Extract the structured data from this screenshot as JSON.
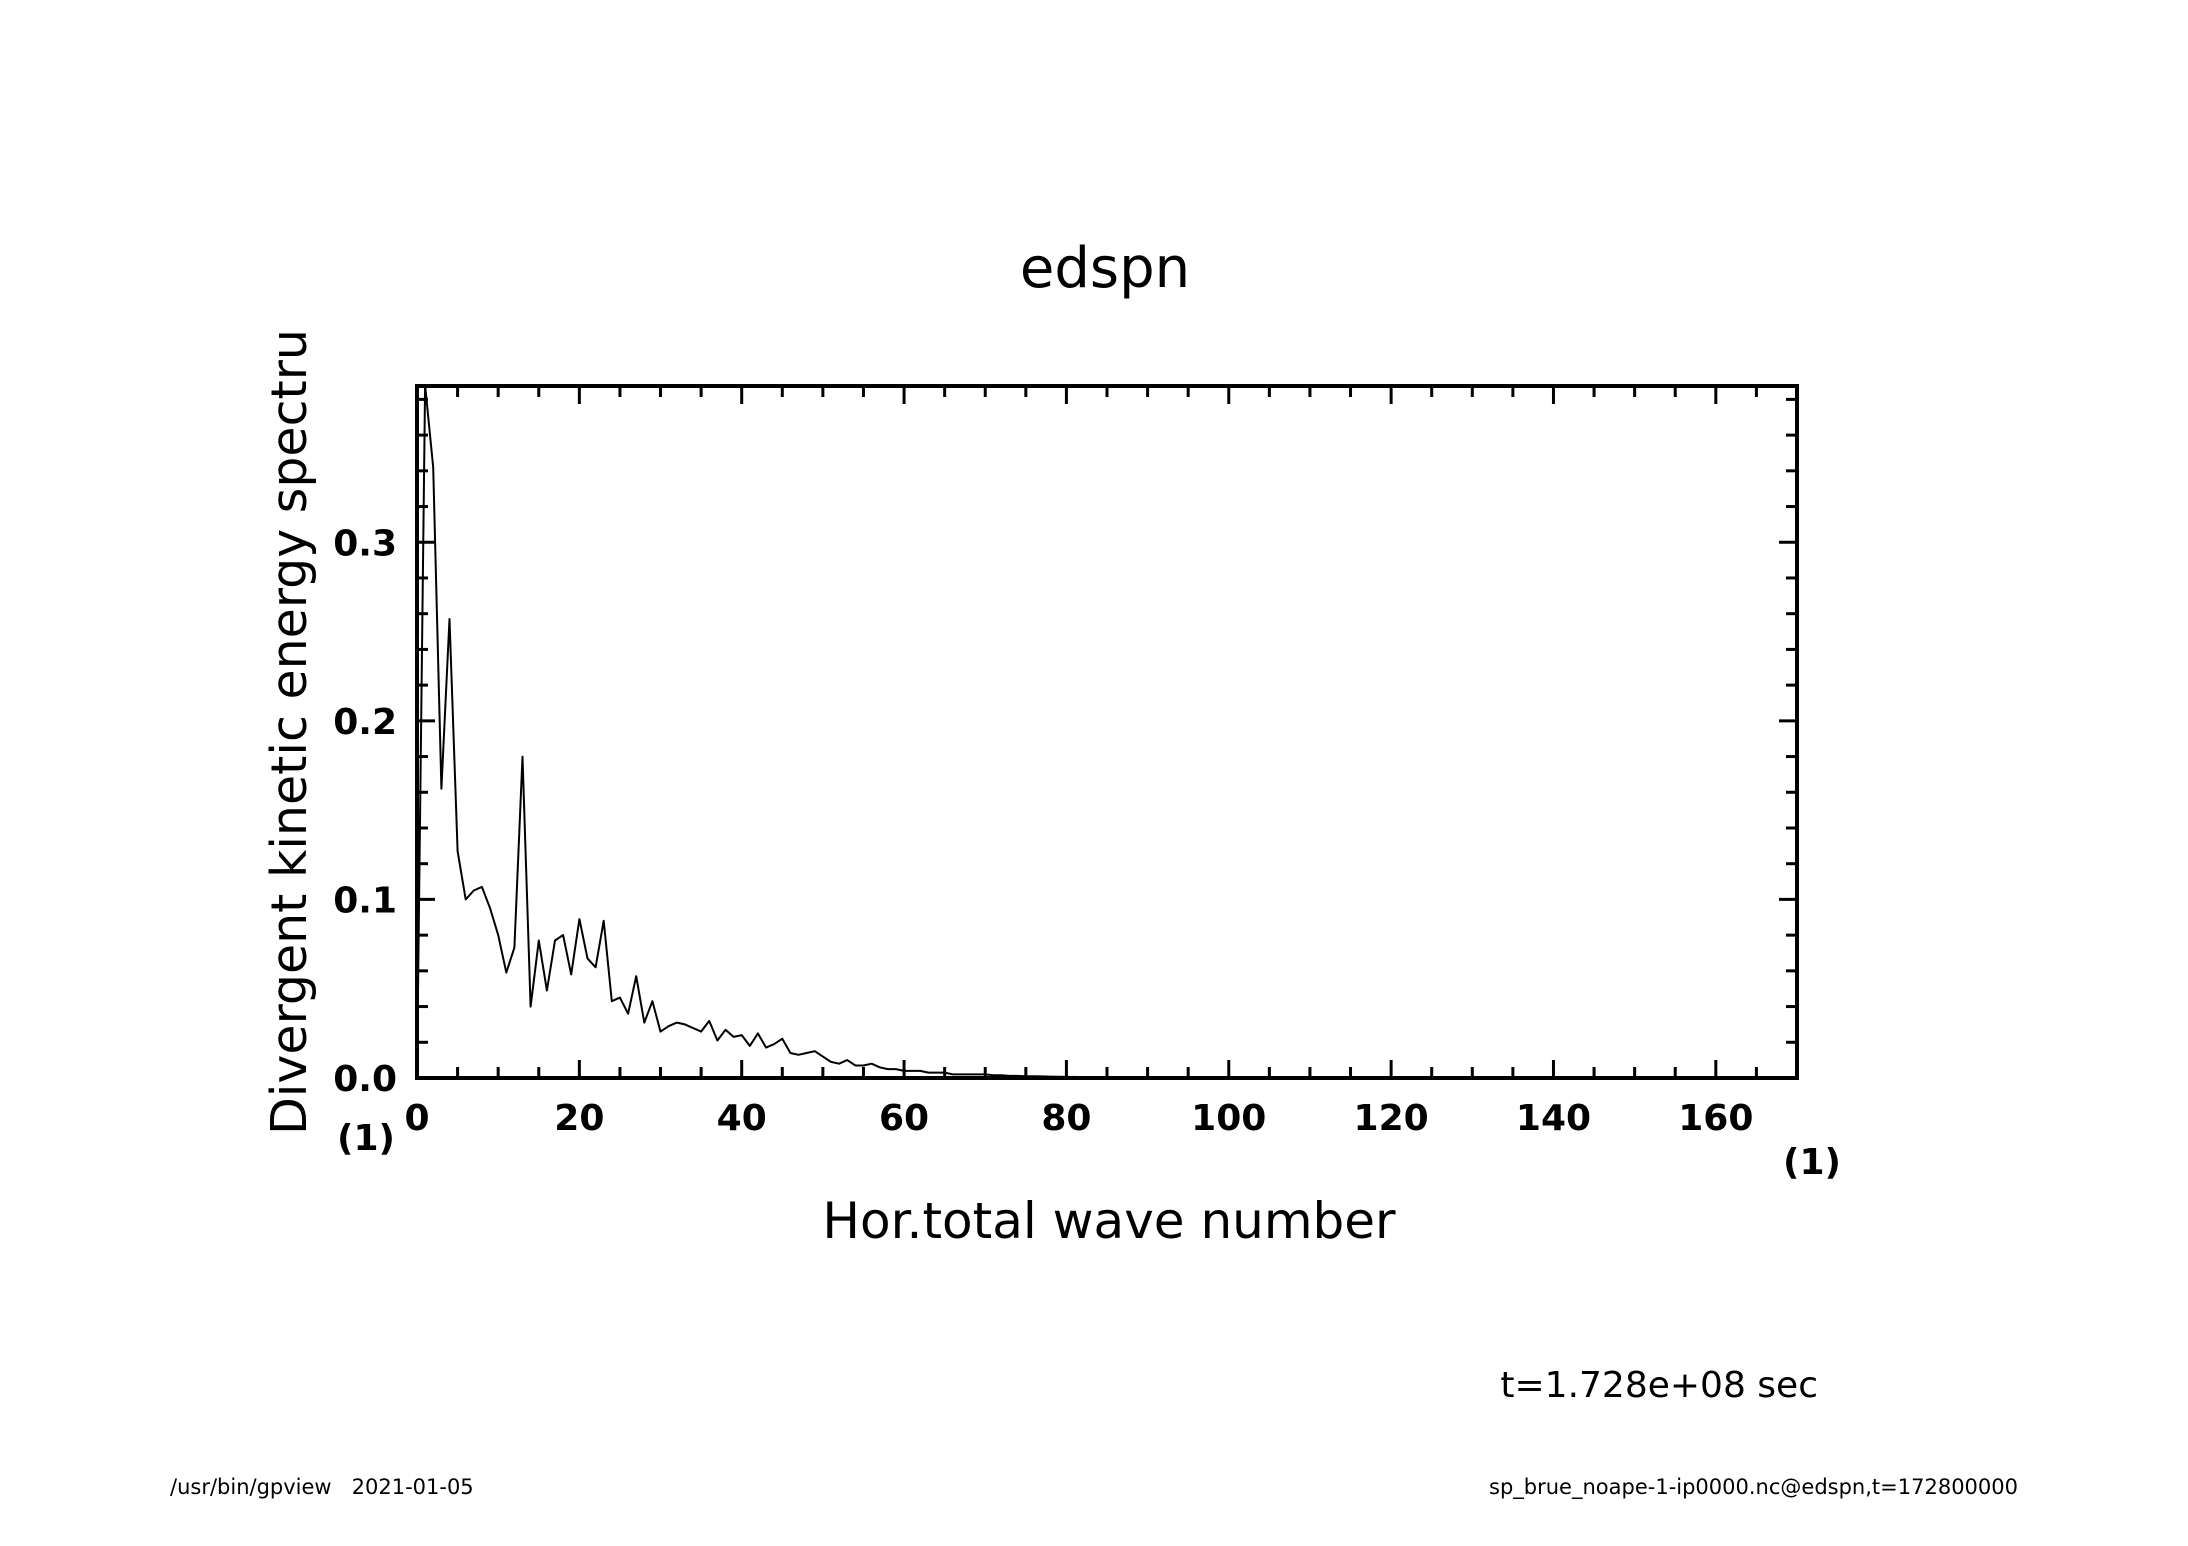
{
  "chart_data": {
    "type": "line",
    "title": "edspn",
    "xlabel": "Hor.total wave number",
    "ylabel": "Divergent kinetic energy spectru",
    "x_unit": "(1)",
    "y_unit": "(1)",
    "xlim": [
      0,
      170
    ],
    "ylim": [
      0,
      0.3875
    ],
    "x_ticks": [
      0,
      20,
      40,
      60,
      80,
      100,
      120,
      140,
      160
    ],
    "x_tick_labels": [
      "0",
      "20",
      "40",
      "60",
      "80",
      "100",
      "120",
      "140",
      "160"
    ],
    "y_ticks": [
      0.0,
      0.1,
      0.2,
      0.3
    ],
    "y_tick_labels": [
      "0.0",
      "0.1",
      "0.2",
      "0.3"
    ],
    "grid": false,
    "series": [
      {
        "x": [
          0,
          1,
          2,
          3,
          4,
          5,
          6,
          7,
          8,
          9,
          10,
          11,
          12,
          13,
          14,
          15,
          16,
          17,
          18,
          19,
          20,
          21,
          22,
          23,
          24,
          25,
          26,
          27,
          28,
          29,
          30,
          31,
          32,
          33,
          34,
          35,
          36,
          37,
          38,
          39,
          40,
          41,
          42,
          43,
          44,
          45,
          46,
          47,
          48,
          49,
          50,
          51,
          52,
          53,
          54,
          55,
          56,
          57,
          58,
          59,
          60,
          61,
          62,
          63,
          64,
          65,
          66,
          67,
          68,
          69,
          70,
          71,
          72,
          73,
          74,
          75,
          76,
          77,
          78,
          79,
          80,
          85,
          90,
          95,
          100,
          110,
          120,
          130,
          140,
          150,
          160,
          170
        ],
        "y": [
          0.0,
          0.388,
          0.342,
          0.162,
          0.257,
          0.127,
          0.1,
          0.105,
          0.107,
          0.095,
          0.08,
          0.059,
          0.073,
          0.18,
          0.04,
          0.077,
          0.049,
          0.077,
          0.08,
          0.058,
          0.089,
          0.067,
          0.062,
          0.088,
          0.043,
          0.045,
          0.036,
          0.057,
          0.031,
          0.043,
          0.026,
          0.029,
          0.031,
          0.03,
          0.028,
          0.026,
          0.032,
          0.021,
          0.027,
          0.023,
          0.024,
          0.018,
          0.025,
          0.017,
          0.019,
          0.022,
          0.014,
          0.013,
          0.014,
          0.015,
          0.012,
          0.009,
          0.008,
          0.01,
          0.007,
          0.007,
          0.008,
          0.006,
          0.005,
          0.005,
          0.004,
          0.004,
          0.004,
          0.003,
          0.003,
          0.003,
          0.002,
          0.002,
          0.002,
          0.002,
          0.002,
          0.0015,
          0.0015,
          0.0012,
          0.0012,
          0.001,
          0.001,
          0.0009,
          0.0008,
          0.0007,
          0.0006,
          0.0004,
          0.0003,
          0.0002,
          0.0001,
          0.0001,
          0.0,
          0.0,
          0.0,
          0.0,
          0.0,
          0.0
        ]
      }
    ]
  },
  "annotations": {
    "time_label": "t=1.728e+08 sec",
    "footer_left": "/usr/bin/gpview   2021-01-05",
    "footer_right": "sp_brue_noape-1-ip0000.nc@edspn,t=172800000"
  }
}
